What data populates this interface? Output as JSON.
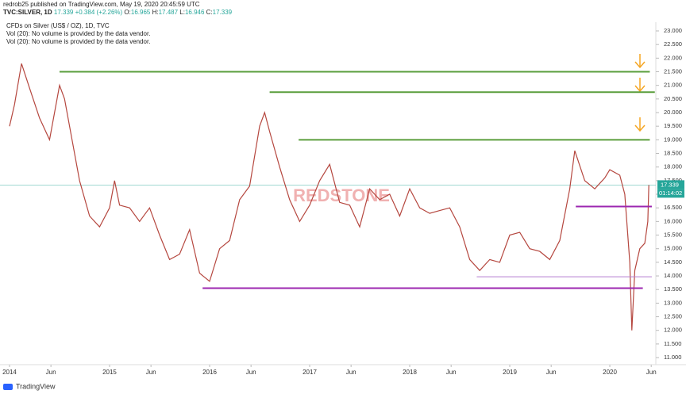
{
  "header": {
    "publisher": "redrob25 published on TradingView.com, May 19, 2020 20:45:59 UTC",
    "symbol": "TVC:SILVER, 1D",
    "last": "17.339",
    "change": "+0.384 (+2.26%)",
    "ohlc": [
      {
        "label": "O:",
        "value": "16.965"
      },
      {
        "label": "H:",
        "value": "17.487"
      },
      {
        "label": "L:",
        "value": "16.946"
      },
      {
        "label": "C:",
        "value": "17.339"
      }
    ],
    "instrument": "CFDs on Silver (US$ / OZ), 1D, TVC",
    "notes": [
      "Vol (20): No volume is provided by the data vendor.",
      "Vol (20): No volume is provided by the data vendor."
    ]
  },
  "watermark": "REDSTONE",
  "footer": "TradingView",
  "chart_data": {
    "type": "line",
    "color": "#b5473f",
    "x": [
      2014.0,
      2014.05,
      2014.12,
      2014.2,
      2014.3,
      2014.4,
      2014.5,
      2014.55,
      2014.6,
      2014.7,
      2014.8,
      2014.9,
      2015.0,
      2015.05,
      2015.1,
      2015.2,
      2015.3,
      2015.4,
      2015.5,
      2015.6,
      2015.7,
      2015.8,
      2015.9,
      2016.0,
      2016.1,
      2016.2,
      2016.3,
      2016.4,
      2016.5,
      2016.55,
      2016.6,
      2016.7,
      2016.8,
      2016.9,
      2017.0,
      2017.1,
      2017.2,
      2017.3,
      2017.4,
      2017.5,
      2017.6,
      2017.7,
      2017.8,
      2017.9,
      2018.0,
      2018.1,
      2018.2,
      2018.3,
      2018.4,
      2018.5,
      2018.6,
      2018.7,
      2018.8,
      2018.9,
      2019.0,
      2019.1,
      2019.2,
      2019.3,
      2019.4,
      2019.5,
      2019.6,
      2019.65,
      2019.75,
      2019.85,
      2019.95,
      2020.0,
      2020.1,
      2020.15,
      2020.2,
      2020.22,
      2020.25,
      2020.3,
      2020.35,
      2020.38,
      2020.39
    ],
    "values": [
      19.5,
      20.3,
      21.8,
      20.9,
      19.8,
      19.0,
      21.0,
      20.5,
      19.5,
      17.5,
      16.2,
      15.8,
      16.5,
      17.5,
      16.6,
      16.5,
      16.0,
      16.5,
      15.5,
      14.6,
      14.8,
      15.7,
      14.1,
      13.8,
      15.0,
      15.3,
      16.8,
      17.3,
      19.5,
      20.0,
      19.3,
      18.0,
      16.8,
      16.0,
      16.6,
      17.5,
      18.1,
      16.7,
      16.6,
      15.8,
      17.2,
      16.8,
      17.0,
      16.2,
      17.2,
      16.5,
      16.3,
      16.4,
      16.5,
      15.8,
      14.6,
      14.2,
      14.6,
      14.5,
      15.5,
      15.6,
      15.0,
      14.9,
      14.6,
      15.3,
      17.2,
      18.6,
      17.5,
      17.2,
      17.6,
      17.9,
      17.7,
      17.0,
      14.5,
      12.0,
      14.2,
      15.0,
      15.2,
      16.0,
      17.339
    ],
    "levels": [
      {
        "value": 21.5,
        "x": [
          2014.5,
          2020.4
        ],
        "color": "#5a9e3c"
      },
      {
        "value": 20.75,
        "x": [
          2016.6,
          2020.45
        ],
        "color": "#5a9e3c"
      },
      {
        "value": 19.0,
        "x": [
          2016.89,
          2020.4
        ],
        "color": "#5a9e3c"
      },
      {
        "value": 16.55,
        "x": [
          2019.66,
          2020.42
        ],
        "color": "#9c27b0"
      },
      {
        "value": 13.97,
        "x": [
          2018.67,
          2020.42
        ],
        "color": "#b57cd0"
      },
      {
        "value": 13.55,
        "x": [
          2015.93,
          2020.33
        ],
        "color": "#9c27b0"
      }
    ],
    "last_price": 17.339,
    "countdown": "01:14:02",
    "xlim": [
      2013.905,
      2020.46
    ],
    "xticks": [
      2014,
      {
        "value": 2014.414,
        "label": "Jun"
      },
      2015,
      {
        "value": 2015.414,
        "label": "Jun"
      },
      2016,
      {
        "value": 2016.414,
        "label": "Jun"
      },
      2017,
      {
        "value": 2017.414,
        "label": "Jun"
      },
      2018,
      {
        "value": 2018.414,
        "label": "Jun"
      },
      2019,
      {
        "value": 2019.414,
        "label": "Jun"
      },
      2020,
      {
        "value": 2020.414,
        "label": "Jun"
      }
    ],
    "ylim": [
      10.74,
      23.32
    ],
    "yticks": [
      {
        "value": 11,
        "label": "11.000"
      },
      {
        "value": 11.5,
        "label": "11.500"
      },
      {
        "value": 12,
        "label": "12.000"
      },
      {
        "value": 12.5,
        "label": "12.500"
      },
      {
        "value": 13,
        "label": "13.000"
      },
      {
        "value": 13.5,
        "label": "13.500"
      },
      {
        "value": 14,
        "label": "14.000"
      },
      {
        "value": 14.5,
        "label": "14.500"
      },
      {
        "value": 15,
        "label": "15.000"
      },
      {
        "value": 15.5,
        "label": "15.500"
      },
      {
        "value": 16,
        "label": "16.000"
      },
      {
        "value": 16.5,
        "label": "16.500"
      },
      {
        "value": 17,
        "label": "17.000"
      },
      {
        "value": 17.5,
        "label": "17.500"
      },
      {
        "value": 18,
        "label": "18.000"
      },
      {
        "value": 18.5,
        "label": "18.500"
      },
      {
        "value": 19,
        "label": "19.000"
      },
      {
        "value": 19.5,
        "label": "19.500"
      },
      {
        "value": 20,
        "label": "20.000"
      },
      {
        "value": 20.5,
        "label": "20.500"
      },
      {
        "value": 21,
        "label": "21.000"
      },
      {
        "value": 21.5,
        "label": "21.500"
      },
      {
        "value": 22,
        "label": "22.000"
      },
      {
        "value": 22.5,
        "label": "22.500"
      },
      {
        "value": 23,
        "label": "23.000"
      }
    ]
  }
}
